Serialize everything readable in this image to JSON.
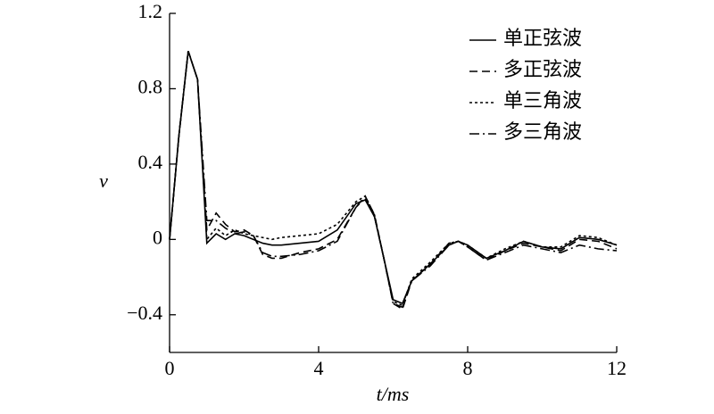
{
  "chart_data": {
    "type": "line",
    "x_label": "t/ms",
    "y_label": "v",
    "x": [
      0,
      0.25,
      0.5,
      0.75,
      1.0,
      1.25,
      1.5,
      1.75,
      2.0,
      2.25,
      2.5,
      2.75,
      3.0,
      3.5,
      4.0,
      4.5,
      5.0,
      5.25,
      5.5,
      5.75,
      6.0,
      6.25,
      6.5,
      7.0,
      7.5,
      7.75,
      8.0,
      8.5,
      9.0,
      9.5,
      10.0,
      10.5,
      11.0,
      11.5,
      12.0
    ],
    "series": [
      {
        "name": "单正弦波",
        "color": "#000000",
        "style": "solid",
        "values": [
          0,
          0.55,
          1.0,
          0.85,
          -0.02,
          0.03,
          0.0,
          0.03,
          0.02,
          0.0,
          -0.02,
          -0.03,
          -0.03,
          -0.02,
          -0.01,
          0.05,
          0.19,
          0.21,
          0.12,
          -0.1,
          -0.32,
          -0.34,
          -0.22,
          -0.13,
          -0.03,
          -0.01,
          -0.03,
          -0.1,
          -0.06,
          -0.01,
          -0.04,
          -0.05,
          0.01,
          0.0,
          -0.03
        ]
      },
      {
        "name": "多正弦波",
        "color": "#000000",
        "style": "dashed",
        "values": [
          0,
          0.55,
          1.0,
          0.85,
          0.05,
          0.14,
          0.08,
          0.04,
          0.05,
          0.02,
          -0.08,
          -0.1,
          -0.1,
          -0.07,
          -0.05,
          0.0,
          0.17,
          0.23,
          0.13,
          -0.1,
          -0.34,
          -0.37,
          -0.22,
          -0.13,
          -0.02,
          -0.01,
          -0.04,
          -0.11,
          -0.06,
          -0.02,
          -0.04,
          -0.06,
          0.0,
          -0.01,
          -0.05
        ]
      },
      {
        "name": "单三角波",
        "color": "#000000",
        "style": "dotted",
        "values": [
          0,
          0.55,
          1.0,
          0.85,
          0.0,
          0.06,
          0.02,
          0.05,
          0.03,
          0.02,
          0.01,
          0.0,
          0.01,
          0.02,
          0.03,
          0.08,
          0.2,
          0.23,
          0.13,
          -0.1,
          -0.33,
          -0.35,
          -0.21,
          -0.12,
          -0.02,
          -0.01,
          -0.03,
          -0.1,
          -0.05,
          -0.01,
          -0.04,
          -0.04,
          0.02,
          0.01,
          -0.03
        ]
      },
      {
        "name": "多三角波",
        "color": "#000000",
        "style": "dashdot",
        "values": [
          0,
          0.55,
          1.0,
          0.85,
          0.1,
          0.1,
          0.06,
          0.03,
          0.04,
          0.02,
          -0.07,
          -0.09,
          -0.09,
          -0.08,
          -0.06,
          -0.01,
          0.17,
          0.22,
          0.12,
          -0.1,
          -0.34,
          -0.36,
          -0.22,
          -0.14,
          -0.03,
          -0.01,
          -0.04,
          -0.11,
          -0.07,
          -0.03,
          -0.05,
          -0.07,
          -0.03,
          -0.05,
          -0.06
        ]
      }
    ],
    "xlim": [
      0,
      12
    ],
    "xticks": [
      0,
      4,
      8,
      12
    ],
    "ylim": [
      -0.6,
      1.2
    ],
    "yticks": [
      {
        "value": -0.4,
        "label": "−0.4"
      },
      0,
      0.4,
      0.8,
      1.2
    ],
    "legend": "upper right"
  }
}
